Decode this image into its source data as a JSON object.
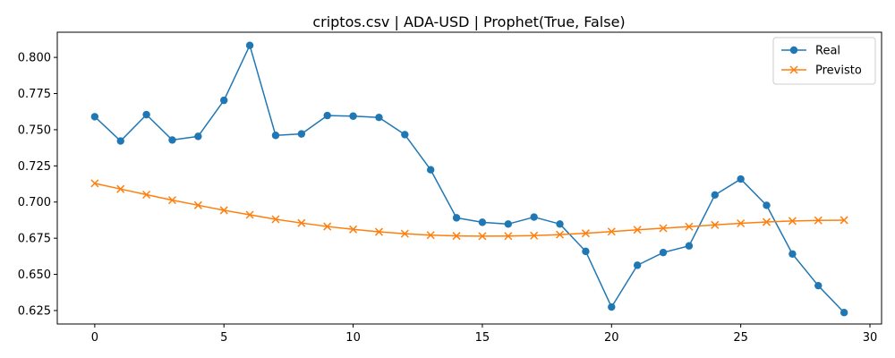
{
  "chart_data": {
    "type": "line",
    "title": "criptos.csv | ADA-USD | Prophet(True, False)",
    "xlabel": "",
    "ylabel": "",
    "xlim": [
      -1.45,
      30.45
    ],
    "ylim": [
      0.6157,
      0.8174
    ],
    "xticks": [
      0,
      5,
      10,
      15,
      20,
      25,
      30
    ],
    "yticks": [
      0.625,
      0.65,
      0.675,
      0.7,
      0.725,
      0.75,
      0.775,
      0.8
    ],
    "ytick_labels": [
      "0.625",
      "0.650",
      "0.675",
      "0.700",
      "0.725",
      "0.750",
      "0.775",
      "0.800"
    ],
    "grid": false,
    "legend_position": "top-right",
    "x": [
      0,
      1,
      2,
      3,
      4,
      5,
      6,
      7,
      8,
      9,
      10,
      11,
      12,
      13,
      14,
      15,
      16,
      17,
      18,
      19,
      20,
      21,
      22,
      23,
      24,
      25,
      26,
      27,
      28,
      29
    ],
    "series": [
      {
        "name": "Real",
        "color": "#1f77b4",
        "marker": "circle",
        "values": [
          0.759,
          0.7422,
          0.7604,
          0.7429,
          0.7454,
          0.7703,
          0.8083,
          0.7461,
          0.7471,
          0.7598,
          0.7594,
          0.7585,
          0.7466,
          0.7223,
          0.6891,
          0.686,
          0.6848,
          0.6896,
          0.6848,
          0.6659,
          0.6274,
          0.6563,
          0.6651,
          0.6697,
          0.7049,
          0.7159,
          0.6977,
          0.6641,
          0.6422,
          0.6236
        ]
      },
      {
        "name": "Previsto",
        "color": "#ff7f0e",
        "marker": "x",
        "values": [
          0.7129,
          0.709,
          0.7051,
          0.7013,
          0.6978,
          0.6943,
          0.6912,
          0.6881,
          0.6855,
          0.6831,
          0.6811,
          0.6794,
          0.6781,
          0.6771,
          0.6766,
          0.6764,
          0.6765,
          0.6768,
          0.6775,
          0.6784,
          0.6796,
          0.6808,
          0.6819,
          0.683,
          0.6842,
          0.6853,
          0.6862,
          0.6869,
          0.6873,
          0.6875
        ]
      }
    ]
  }
}
